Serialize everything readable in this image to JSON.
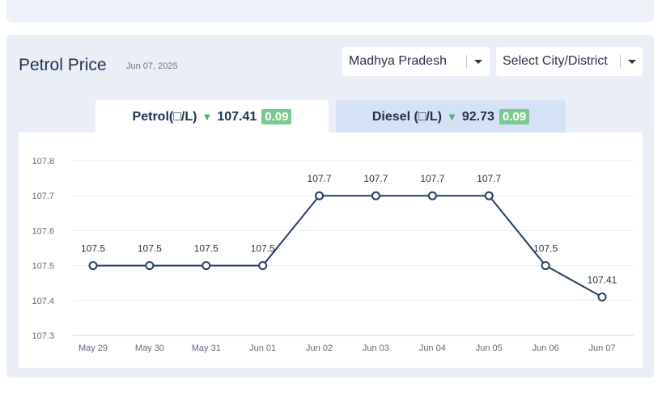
{
  "header": {
    "title": "Petrol Price",
    "date": "Jun 07, 2025"
  },
  "filters": {
    "state": "Madhya Pradesh",
    "city_placeholder": "Select City/District"
  },
  "tabs": {
    "petrol": {
      "label": "Petrol(□/L)",
      "price": "107.41",
      "change": "0.09",
      "direction": "down"
    },
    "diesel": {
      "label": "Diesel (□/L)",
      "price": "92.73",
      "change": "0.09",
      "direction": "down"
    }
  },
  "colors": {
    "line": "#243d63",
    "accent_down": "#3fb57a",
    "badge": "#7ac98f"
  },
  "chart_data": {
    "type": "line",
    "title": "",
    "xlabel": "",
    "ylabel": "",
    "categories": [
      "May 29",
      "May 30",
      "May 31",
      "Jun 01",
      "Jun 02",
      "Jun 03",
      "Jun 04",
      "Jun 05",
      "Jun 06",
      "Jun 07"
    ],
    "values": [
      107.5,
      107.5,
      107.5,
      107.5,
      107.7,
      107.7,
      107.7,
      107.7,
      107.5,
      107.41
    ],
    "data_labels": [
      "107.5",
      "107.5",
      "107.5",
      "107.5",
      "107.7",
      "107.7",
      "107.7",
      "107.7",
      "107.5",
      "107.41"
    ],
    "yticks": [
      107.3,
      107.4,
      107.5,
      107.6,
      107.7,
      107.8
    ],
    "ytick_labels": [
      "107.3",
      "107.4",
      "107.5",
      "107.6",
      "107.7",
      "107.8"
    ],
    "ylim": [
      107.3,
      107.8
    ],
    "grid": true
  }
}
